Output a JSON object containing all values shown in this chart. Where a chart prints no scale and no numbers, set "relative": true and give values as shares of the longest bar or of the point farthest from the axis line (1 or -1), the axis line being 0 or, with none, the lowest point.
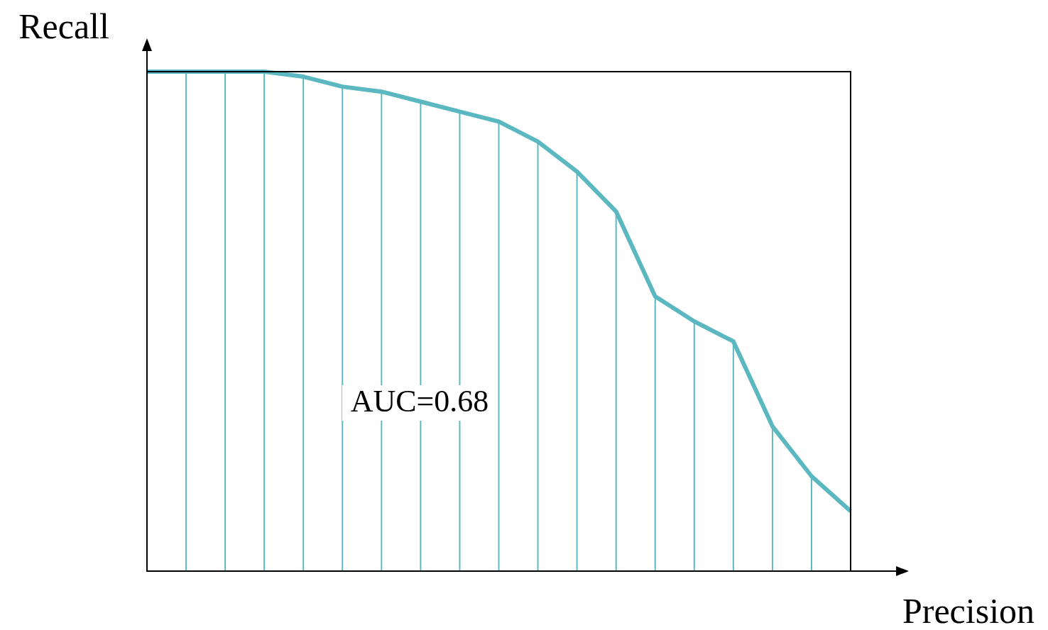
{
  "chart_data": {
    "type": "area",
    "relative": true,
    "xlabel": "Precision",
    "ylabel": "Recall",
    "annotations": [
      "AUC=0.68"
    ],
    "tick_labels": false,
    "marker": "none",
    "line_style": "solid",
    "categories": [
      null,
      null,
      null,
      null,
      null,
      null,
      null,
      null,
      null,
      null,
      null,
      null,
      null,
      null,
      null,
      null,
      null,
      null,
      null
    ],
    "series": [
      {
        "color": "#5bb8c0",
        "values": [
          1,
          1,
          1,
          1,
          0.99,
          0.97,
          0.96,
          0.94,
          0.92,
          0.9,
          0.86,
          0.8,
          0.72,
          0.55,
          0.5,
          0.46,
          0.29,
          0.19,
          0.12
        ]
      }
    ]
  }
}
